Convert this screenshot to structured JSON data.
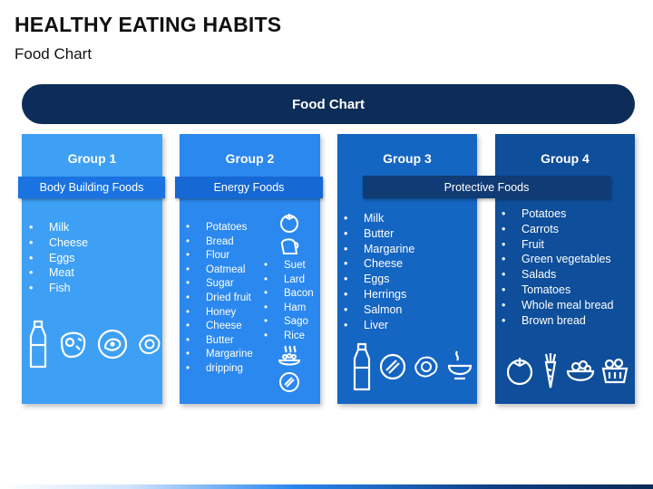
{
  "title": "HEALTHY EATING HABITS",
  "subtitle": "Food Chart",
  "banner": "Food Chart",
  "groups": [
    {
      "name": "Group 1",
      "tag": "Body Building Foods",
      "items": [
        "Milk",
        "Cheese",
        "Eggs",
        "Meat",
        "Fish"
      ],
      "icons": [
        "milk-bottle-icon",
        "steak-icon",
        "chicken-plate-icon",
        "fried-egg-icon"
      ]
    },
    {
      "name": "Group 2",
      "tag": "Energy Foods",
      "items": [
        "Potatoes",
        "Bread",
        "Flour",
        "Oatmeal",
        "Sugar",
        "Dried fruit",
        "Honey",
        "Cheese",
        "Butter",
        "Margarine",
        "dripping"
      ],
      "items_b": [
        "Suet",
        "Lard",
        "Bacon",
        "Ham",
        "Sago",
        "Rice"
      ],
      "icons": [
        "tomato-icon",
        "bread-icon",
        "hot-meal-icon",
        "dish-icon"
      ]
    },
    {
      "name": "Group 3",
      "items": [
        "Milk",
        "Butter",
        "Margarine",
        "Cheese",
        "Eggs",
        "Herrings",
        "Salmon",
        "Liver"
      ],
      "icons": [
        "milk-bottle-icon",
        "dish-icon",
        "fried-egg-icon",
        "soup-bowl-icon"
      ]
    },
    {
      "name": "Group 4",
      "items": [
        "Potatoes",
        "Carrots",
        "Fruit",
        "Green vegetables",
        "Salads",
        "Tomatoes",
        "Whole meal bread",
        "Brown bread"
      ],
      "icons": [
        "tomato-icon",
        "carrot-icon",
        "salad-bowl-icon",
        "vegetable-basket-icon"
      ]
    }
  ],
  "shared_tag": "Protective Foods",
  "colors": {
    "banner": "#0c2d58",
    "group1": "#3ea0f5",
    "group2": "#2b88ee",
    "group3": "#1565c2",
    "group4": "#0e4e9a"
  }
}
